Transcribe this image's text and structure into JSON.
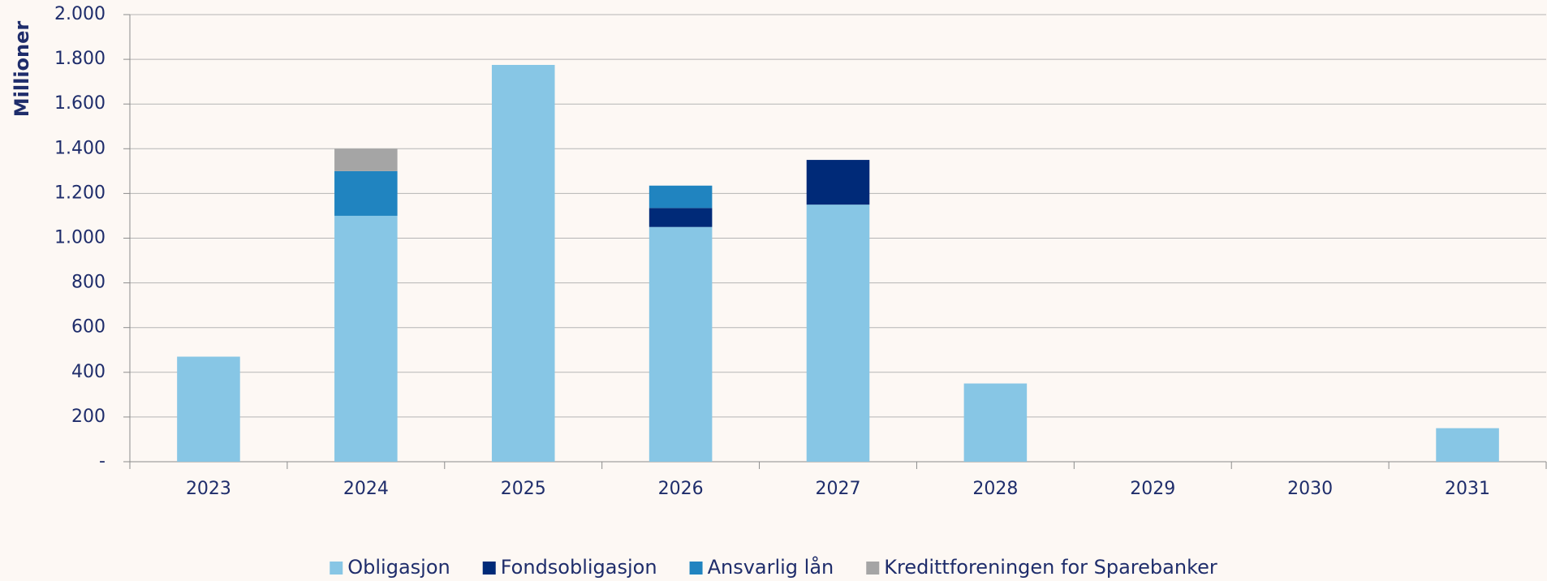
{
  "chart_data": {
    "type": "stacked_bar",
    "y_axis_label": "Millioner",
    "categories": [
      "2023",
      "2024",
      "2025",
      "2026",
      "2027",
      "2028",
      "2029",
      "2030",
      "2031"
    ],
    "series": [
      {
        "name": "Obligasjon",
        "color": "#87c6e5",
        "values": [
          470,
          1100,
          1775,
          1050,
          1150,
          350,
          0,
          0,
          150
        ]
      },
      {
        "name": "Fondsobligasjon",
        "color": "#002a78",
        "values": [
          0,
          0,
          0,
          85,
          200,
          0,
          0,
          0,
          0
        ]
      },
      {
        "name": "Ansvarlig lån",
        "color": "#2084c0",
        "values": [
          0,
          200,
          0,
          100,
          0,
          0,
          0,
          0,
          0
        ]
      },
      {
        "name": "Kredittforeningen for Sparebanker",
        "color": "#a5a5a5",
        "values": [
          0,
          100,
          0,
          0,
          0,
          0,
          0,
          0,
          0
        ]
      }
    ],
    "ylim": [
      0,
      2000
    ],
    "yticks": [
      {
        "value": 0,
        "label": "-"
      },
      200,
      400,
      600,
      800,
      {
        "value": 1000,
        "label": "1.000"
      },
      {
        "value": 1200,
        "label": "1.200"
      },
      {
        "value": 1400,
        "label": "1.400"
      },
      {
        "value": 1600,
        "label": "1.600"
      },
      {
        "value": 1800,
        "label": "1.800"
      },
      {
        "value": 2000,
        "label": "2.000"
      }
    ],
    "grid": true,
    "legend": "bottom"
  }
}
